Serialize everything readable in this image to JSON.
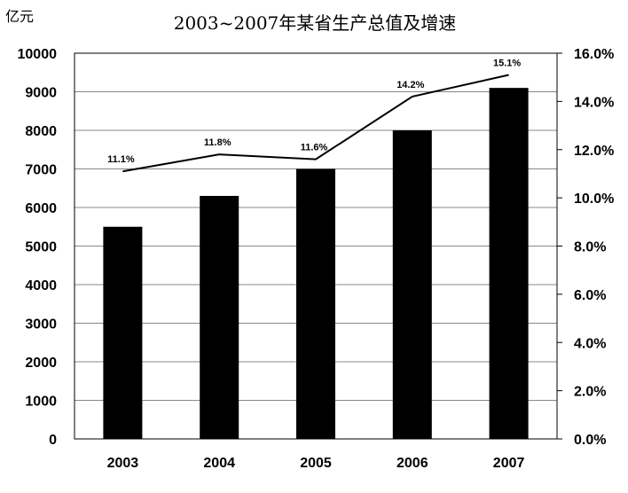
{
  "chart_data": {
    "type": "bar",
    "title": "2003~2007年某省生产总值及增速",
    "unit_left": "亿元",
    "categories": [
      "2003",
      "2004",
      "2005",
      "2006",
      "2007"
    ],
    "series": [
      {
        "type": "bar",
        "axis": "left",
        "values": [
          5500,
          6300,
          7000,
          8000,
          9100
        ],
        "color": "#000000"
      },
      {
        "type": "line",
        "axis": "right",
        "values": [
          11.1,
          11.8,
          11.6,
          14.2,
          15.1
        ],
        "labels": [
          "11.1%",
          "11.8%",
          "11.6%",
          "14.2%",
          "15.1%"
        ],
        "color": "#000000"
      }
    ],
    "ylim_left": [
      0,
      10000
    ],
    "yticks_left": [
      "0",
      "1000",
      "2000",
      "3000",
      "4000",
      "5000",
      "6000",
      "7000",
      "8000",
      "9000",
      "10000"
    ],
    "ylim_right": [
      0,
      16
    ],
    "yticks_right": [
      "0.0%",
      "2.0%",
      "4.0%",
      "6.0%",
      "8.0%",
      "10.0%",
      "12.0%",
      "14.0%",
      "16.0%"
    ],
    "grid": true
  }
}
